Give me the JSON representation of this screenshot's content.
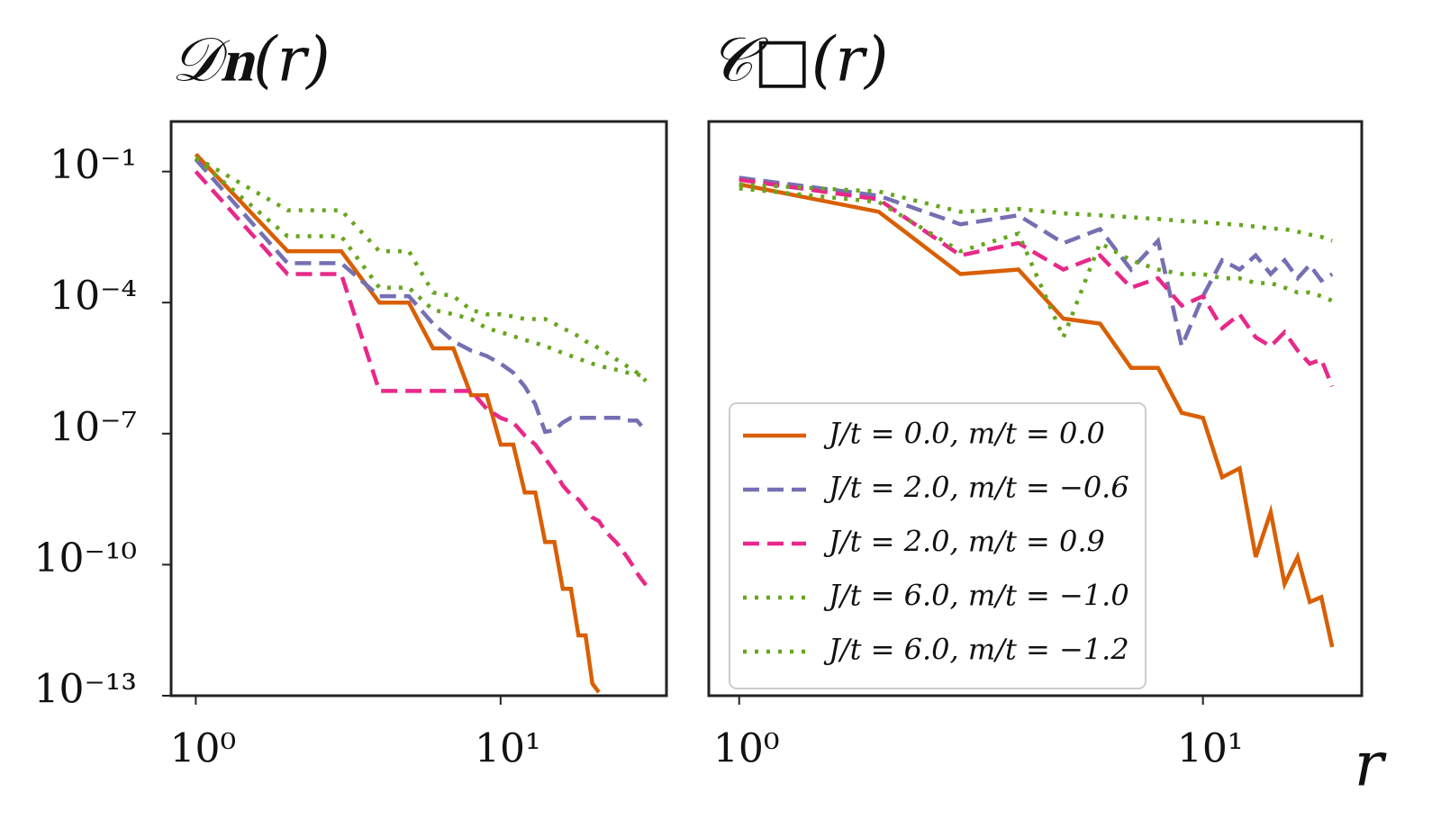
{
  "chart_data": [
    {
      "type": "line",
      "title": "𝒟𝐧(𝑟)",
      "xscale": "log",
      "yscale": "log",
      "xlim": [
        0.83,
        35
      ],
      "ylim": [
        1e-13,
        1.4
      ],
      "xticks": [
        {
          "value": 1,
          "label": "10⁰"
        },
        {
          "value": 10,
          "label": "10¹"
        }
      ],
      "yticks": [
        {
          "value": 0.1,
          "label": "10⁻¹"
        },
        {
          "value": 0.0001,
          "label": "10⁻⁴"
        },
        {
          "value": 1e-07,
          "label": "10⁻⁷"
        },
        {
          "value": 1e-10,
          "label": "10⁻¹⁰"
        },
        {
          "value": 1e-13,
          "label": "10⁻¹³"
        }
      ],
      "x": [
        1,
        2,
        3,
        4,
        5,
        6,
        7,
        8,
        9,
        10,
        11,
        12,
        13,
        14,
        15,
        16,
        17,
        18,
        19,
        20,
        21,
        22,
        23,
        24,
        25,
        26,
        27,
        28,
        29,
        30
      ],
      "series": [
        {
          "color": "#d95f02",
          "dash": "solid",
          "values": [
            0.25,
            0.0015,
            0.0015,
            0.0001,
            0.0001,
            9e-06,
            9e-06,
            7.6e-07,
            7.6e-07,
            5.6e-08,
            5.6e-08,
            4.5e-09,
            4.5e-09,
            3.3e-10,
            3.3e-10,
            2.8e-11,
            2.8e-11,
            2.4e-12,
            2.4e-12,
            1.9e-13,
            1.2e-13,
            null,
            null,
            null,
            null,
            null,
            null,
            null,
            null,
            null
          ]
        },
        {
          "color": "#7570b3",
          "dash": "dashed",
          "values": [
            0.19,
            0.0008,
            0.0008,
            0.00014,
            0.00014,
            3.3e-05,
            1.3e-05,
            8e-06,
            6e-06,
            4e-06,
            2.5e-06,
            1.2e-06,
            4.7e-07,
            1.1e-07,
            1.2e-07,
            1.8e-07,
            2.3e-07,
            2.3e-07,
            2.3e-07,
            2.3e-07,
            2.3e-07,
            2.3e-07,
            2.3e-07,
            2.3e-07,
            2.3e-07,
            2e-07,
            2e-07,
            2e-07,
            1.5e-07,
            1.5e-07
          ]
        },
        {
          "color": "#e7298a",
          "dash": "dashed",
          "values": [
            0.1,
            0.00045,
            0.00045,
            9.5e-07,
            9.5e-07,
            9.5e-07,
            9.5e-07,
            9.5e-07,
            3.7e-07,
            2.3e-07,
            1.8e-07,
            9e-08,
            5.6e-08,
            2.7e-08,
            1.4e-08,
            6.5e-09,
            4e-09,
            3.1e-09,
            1.9e-09,
            1.2e-09,
            1e-09,
            6e-10,
            4.3e-10,
            3.2e-10,
            2.2e-10,
            1.5e-10,
            1e-10,
            6.5e-11,
            4.6e-11,
            3.4e-11
          ]
        },
        {
          "color": "#66a61e",
          "dash": "dotted",
          "values": [
            0.21,
            0.013,
            0.013,
            0.0015,
            0.0015,
            0.00017,
            0.00014,
            6.8e-05,
            5.4e-05,
            5.4e-05,
            4.8e-05,
            4.2e-05,
            4.2e-05,
            4.2e-05,
            3.3e-05,
            2.6e-05,
            2.1e-05,
            1.7e-05,
            1.3e-05,
            1.1e-05,
            9e-06,
            7.5e-06,
            6.2e-06,
            5e-06,
            4.2e-06,
            3.5e-06,
            3e-06,
            2.5e-06,
            2e-06,
            1.6e-06
          ]
        },
        {
          "color": "#66a61e",
          "dash": "dotted",
          "values": [
            0.2,
            0.0033,
            0.0033,
            0.00022,
            0.00022,
            6.8e-05,
            5.4e-05,
            4.2e-05,
            2.6e-05,
            2.1e-05,
            1.7e-05,
            1.4e-05,
            1.2e-05,
            1e-05,
            8.5e-06,
            7e-06,
            6e-06,
            5.2e-06,
            4.5e-06,
            4e-06,
            3.6e-06,
            3.3e-06,
            3.1e-06,
            2.9e-06,
            2.7e-06,
            2.5e-06,
            2.4e-06,
            2.3e-06,
            2.1e-06,
            2e-06
          ]
        }
      ]
    },
    {
      "type": "line",
      "title": "𝒞□(𝑟)",
      "xlabel": "𝑟",
      "xscale": "log",
      "yscale": "log",
      "xlim": [
        0.86,
        22
      ],
      "ylim": [
        1e-13,
        1.4
      ],
      "xticks": [
        {
          "value": 1,
          "label": "10⁰"
        },
        {
          "value": 10,
          "label": "10¹"
        }
      ],
      "legend": "lower left",
      "x": [
        1,
        2,
        3,
        4,
        5,
        6,
        7,
        8,
        9,
        10,
        11,
        12,
        13,
        14,
        15,
        16,
        17,
        18,
        19
      ],
      "series": [
        {
          "name": "J/t = 0.0, m/t = 0.0",
          "color": "#d95f02",
          "dash": "solid",
          "values": [
            0.051,
            0.012,
            0.00045,
            0.00057,
            4.3e-05,
            3.3e-05,
            3.2e-06,
            3.2e-06,
            3e-07,
            2.3e-07,
            1e-08,
            1.6e-08,
            1.5e-10,
            1.6e-09,
            3.6e-11,
            1.5e-10,
            1.4e-11,
            1.8e-11,
            1.3e-12
          ]
        },
        {
          "name": "J/t = 2.0, m/t = −0.6",
          "color": "#7570b3",
          "dash": "dashed",
          "values": [
            0.072,
            0.028,
            0.0062,
            0.01,
            0.0023,
            0.0048,
            0.00057,
            0.0026,
            1e-05,
            0.00014,
            0.00093,
            0.00057,
            0.0012,
            0.00045,
            0.00093,
            0.00036,
            0.00073,
            0.00032,
            0.00045
          ]
        },
        {
          "name": "J/t = 2.0, m/t = 0.9",
          "color": "#e7298a",
          "dash": "dashed",
          "values": [
            0.065,
            0.023,
            0.0012,
            0.0023,
            0.00057,
            0.0012,
            0.00022,
            0.00036,
            8.5e-05,
            0.00014,
            2.6e-05,
            5.4e-05,
            1.6e-05,
            1e-05,
            2.1e-05,
            8e-06,
            4e-06,
            5e-06,
            1.2e-06
          ]
        },
        {
          "name": "J/t = 6.0, m/t = −1.0",
          "color": "#66a61e",
          "dash": "dotted",
          "values": [
            0.051,
            0.035,
            0.012,
            0.014,
            0.011,
            0.01,
            0.009,
            0.0082,
            0.0074,
            0.007,
            0.0064,
            0.006,
            0.0055,
            0.005,
            0.0048,
            0.0042,
            0.0036,
            0.0032,
            0.0026
          ]
        },
        {
          "name": "J/t = 6.0, m/t = −1.2",
          "color": "#66a61e",
          "dash": "dotted",
          "values": [
            0.041,
            0.02,
            0.0015,
            0.0038,
            1.6e-05,
            0.0023,
            0.00093,
            0.00057,
            0.00045,
            0.00045,
            0.00036,
            0.00036,
            0.00028,
            0.00028,
            0.00022,
            0.00017,
            0.00017,
            0.00014,
            0.00011
          ]
        }
      ]
    }
  ]
}
